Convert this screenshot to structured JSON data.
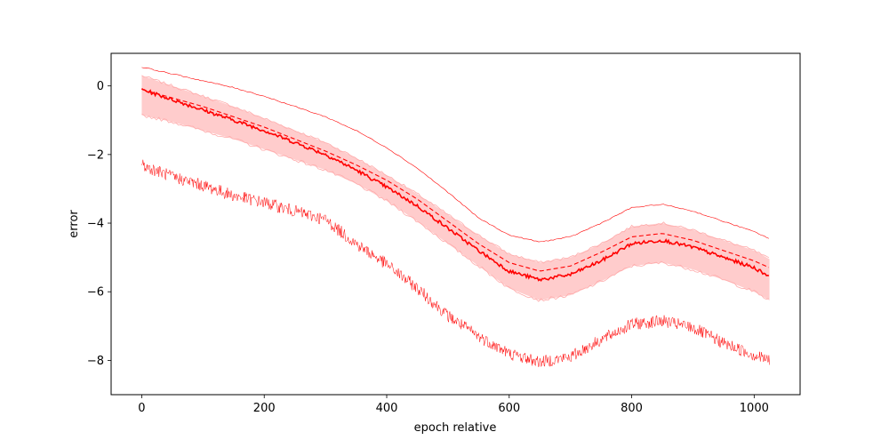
{
  "chart_data": {
    "type": "line",
    "title": "",
    "xlabel": "epoch relative",
    "ylabel": "error",
    "xlim": [
      -50,
      1075
    ],
    "ylim": [
      -9.0,
      0.95
    ],
    "xticks": [
      0,
      200,
      400,
      600,
      800,
      1000
    ],
    "yticks": [
      0,
      -2,
      -4,
      -6,
      -8
    ],
    "xtick_labels": [
      "0",
      "200",
      "400",
      "600",
      "800",
      "1000"
    ],
    "ytick_labels": [
      "0",
      "−2",
      "−4",
      "−6",
      "−8"
    ],
    "grid": false,
    "legend": "none",
    "color": "#ff0000",
    "band_color": "#ffcccc",
    "x": [
      0,
      50,
      100,
      150,
      200,
      250,
      300,
      350,
      400,
      450,
      500,
      550,
      600,
      650,
      700,
      750,
      800,
      850,
      900,
      950,
      1000,
      1025
    ],
    "series": [
      {
        "role": "mean",
        "style": "solid",
        "values": [
          -0.1,
          -0.4,
          -0.7,
          -1.0,
          -1.3,
          -1.65,
          -2.0,
          -2.45,
          -2.95,
          -3.5,
          -4.15,
          -4.8,
          -5.4,
          -5.65,
          -5.5,
          -5.1,
          -4.6,
          -4.5,
          -4.7,
          -5.0,
          -5.3,
          -5.55
        ]
      },
      {
        "role": "band-upper",
        "values": [
          0.3,
          0.0,
          -0.3,
          -0.6,
          -0.95,
          -1.3,
          -1.65,
          -2.1,
          -2.6,
          -3.15,
          -3.75,
          -4.35,
          -4.9,
          -5.15,
          -5.0,
          -4.6,
          -4.1,
          -4.0,
          -4.2,
          -4.5,
          -4.8,
          -5.05
        ]
      },
      {
        "role": "band-lower",
        "values": [
          -0.85,
          -1.05,
          -1.3,
          -1.55,
          -1.85,
          -2.15,
          -2.45,
          -2.85,
          -3.35,
          -3.95,
          -4.6,
          -5.25,
          -5.9,
          -6.25,
          -6.1,
          -5.7,
          -5.25,
          -5.15,
          -5.35,
          -5.65,
          -6.0,
          -6.25
        ]
      },
      {
        "role": "dashed",
        "style": "dashed",
        "values": [
          -0.1,
          -0.35,
          -0.6,
          -0.9,
          -1.2,
          -1.55,
          -1.9,
          -2.3,
          -2.75,
          -3.3,
          -3.95,
          -4.6,
          -5.15,
          -5.4,
          -5.25,
          -4.85,
          -4.4,
          -4.3,
          -4.5,
          -4.8,
          -5.1,
          -5.3
        ]
      },
      {
        "role": "upper-thin",
        "style": "thin",
        "values": [
          0.55,
          0.35,
          0.15,
          -0.05,
          -0.3,
          -0.6,
          -0.9,
          -1.3,
          -1.8,
          -2.4,
          -3.1,
          -3.85,
          -4.35,
          -4.55,
          -4.4,
          -4.0,
          -3.55,
          -3.45,
          -3.65,
          -3.95,
          -4.25,
          -4.45
        ]
      },
      {
        "role": "lower-noisy",
        "style": "thin-noisy",
        "values": [
          -2.3,
          -2.65,
          -2.9,
          -3.2,
          -3.4,
          -3.65,
          -3.9,
          -4.6,
          -5.2,
          -5.9,
          -6.7,
          -7.3,
          -7.8,
          -8.05,
          -7.9,
          -7.4,
          -6.95,
          -6.85,
          -7.05,
          -7.5,
          -7.85,
          -8.0
        ]
      }
    ]
  }
}
